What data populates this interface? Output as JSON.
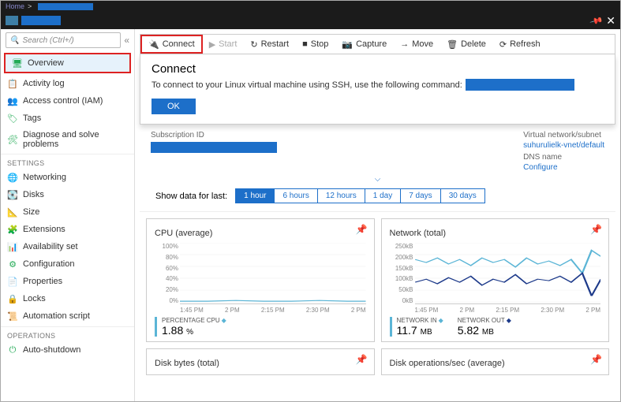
{
  "breadcrumb": {
    "home": "Home",
    "sep": ">"
  },
  "header": {
    "pin_icon": "📌",
    "close_icon": "✕"
  },
  "search": {
    "placeholder": "Search (Ctrl+/)"
  },
  "nav": {
    "items_top": [
      {
        "label": "Overview",
        "icon": "🖥",
        "active": true
      },
      {
        "label": "Activity log",
        "icon": "📋"
      },
      {
        "label": "Access control (IAM)",
        "icon": "👥"
      },
      {
        "label": "Tags",
        "icon": "🏷"
      },
      {
        "label": "Diagnose and solve problems",
        "icon": "🛠"
      }
    ],
    "settings_header": "SETTINGS",
    "items_settings": [
      {
        "label": "Networking",
        "icon": "🌐"
      },
      {
        "label": "Disks",
        "icon": "💽"
      },
      {
        "label": "Size",
        "icon": "📐"
      },
      {
        "label": "Extensions",
        "icon": "🧩"
      },
      {
        "label": "Availability set",
        "icon": "📊"
      },
      {
        "label": "Configuration",
        "icon": "⚙"
      },
      {
        "label": "Properties",
        "icon": "📄"
      },
      {
        "label": "Locks",
        "icon": "🔒"
      },
      {
        "label": "Automation script",
        "icon": "📜"
      }
    ],
    "operations_header": "OPERATIONS",
    "items_ops": [
      {
        "label": "Auto-shutdown",
        "icon": "⏻"
      }
    ]
  },
  "toolbar": [
    {
      "label": "Connect",
      "icon": "🔌",
      "sel": true
    },
    {
      "label": "Start",
      "icon": "▶",
      "disabled": true
    },
    {
      "label": "Restart",
      "icon": "↻"
    },
    {
      "label": "Stop",
      "icon": "■"
    },
    {
      "label": "Capture",
      "icon": "📷"
    },
    {
      "label": "Move",
      "icon": "→"
    },
    {
      "label": "Delete",
      "icon": "🗑"
    },
    {
      "label": "Refresh",
      "icon": "⟳"
    }
  ],
  "connect_panel": {
    "title": "Connect",
    "text": "To connect to your Linux virtual machine using SSH, use the following command:",
    "ok": "OK"
  },
  "details": {
    "sub_label": "Subscription ID",
    "vnet_label": "Virtual network/subnet",
    "vnet_value": "suhurulielk-vnet/default",
    "dns_label": "DNS name",
    "dns_value": "Configure"
  },
  "timerange": {
    "label": "Show data for last:",
    "opts": [
      "1 hour",
      "6 hours",
      "12 hours",
      "1 day",
      "7 days",
      "30 days"
    ],
    "active": 0
  },
  "charts": {
    "cpu": {
      "title": "CPU (average)",
      "y": [
        "100%",
        "80%",
        "60%",
        "40%",
        "20%",
        "0%"
      ],
      "x": [
        "1:45 PM",
        "2 PM",
        "2:15 PM",
        "2:30 PM",
        "2 PM"
      ],
      "metric_label": "PERCENTAGE CPU",
      "metric_value": "1.88",
      "metric_unit": "%",
      "color": "#5bb5d6",
      "series": [
        [
          0,
          77
        ],
        [
          15,
          77
        ],
        [
          30,
          76
        ],
        [
          45,
          77
        ],
        [
          60,
          77
        ],
        [
          75,
          76
        ],
        [
          90,
          77
        ],
        [
          100,
          77
        ]
      ]
    },
    "net": {
      "title": "Network (total)",
      "y": [
        "250kB",
        "200kB",
        "150kB",
        "100kB",
        "50kB",
        "0kB"
      ],
      "x": [
        "1:45 PM",
        "2 PM",
        "2:15 PM",
        "2:30 PM",
        "2 PM"
      ],
      "metrics": [
        {
          "label": "NETWORK IN",
          "value": "11.7",
          "unit": "MB",
          "color": "#5bb5d6"
        },
        {
          "label": "NETWORK OUT",
          "value": "5.82",
          "unit": "MB",
          "color": "#1d3a8a"
        }
      ],
      "border_color": "#5bb5d6",
      "series_in": [
        [
          0,
          22
        ],
        [
          6,
          26
        ],
        [
          12,
          20
        ],
        [
          18,
          28
        ],
        [
          24,
          22
        ],
        [
          30,
          30
        ],
        [
          36,
          20
        ],
        [
          42,
          26
        ],
        [
          48,
          22
        ],
        [
          54,
          32
        ],
        [
          60,
          20
        ],
        [
          66,
          28
        ],
        [
          72,
          24
        ],
        [
          78,
          30
        ],
        [
          84,
          22
        ],
        [
          90,
          40
        ],
        [
          95,
          10
        ],
        [
          100,
          18
        ]
      ],
      "series_out": [
        [
          0,
          52
        ],
        [
          6,
          48
        ],
        [
          12,
          54
        ],
        [
          18,
          46
        ],
        [
          24,
          52
        ],
        [
          30,
          44
        ],
        [
          36,
          56
        ],
        [
          42,
          48
        ],
        [
          48,
          52
        ],
        [
          54,
          42
        ],
        [
          60,
          54
        ],
        [
          66,
          48
        ],
        [
          72,
          50
        ],
        [
          78,
          44
        ],
        [
          84,
          52
        ],
        [
          90,
          40
        ],
        [
          95,
          70
        ],
        [
          100,
          48
        ]
      ]
    },
    "disk_bytes": {
      "title": "Disk bytes (total)"
    },
    "disk_ops": {
      "title": "Disk operations/sec (average)"
    }
  }
}
